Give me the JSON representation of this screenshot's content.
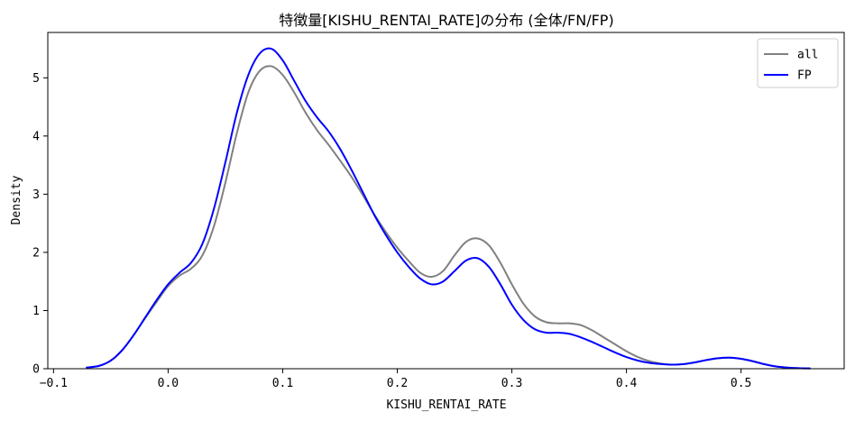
{
  "chart_data": {
    "type": "line",
    "title": "特徴量[KISHU_RENTAI_RATE]の分布 (全体/FN/FP)",
    "xlabel": "KISHU_RENTAI_RATE",
    "ylabel": "Density",
    "xlim": [
      -0.105,
      0.59
    ],
    "ylim": [
      0,
      5.78
    ],
    "x_ticks": [
      -0.1,
      0.0,
      0.1,
      0.2,
      0.3,
      0.4,
      0.5
    ],
    "x_tick_labels": [
      "−0.1",
      "0.0",
      "0.1",
      "0.2",
      "0.3",
      "0.4",
      "0.5"
    ],
    "y_ticks": [
      0,
      1,
      2,
      3,
      4,
      5
    ],
    "y_tick_labels": [
      "0",
      "1",
      "2",
      "3",
      "4",
      "5"
    ],
    "grid": false,
    "legend": "top-right",
    "series": [
      {
        "name": "all",
        "color": "#808080",
        "x": [
          -0.071,
          -0.06,
          -0.05,
          -0.04,
          -0.03,
          -0.02,
          -0.01,
          0.0,
          0.01,
          0.02,
          0.03,
          0.04,
          0.05,
          0.06,
          0.07,
          0.08,
          0.09,
          0.1,
          0.11,
          0.12,
          0.13,
          0.14,
          0.15,
          0.16,
          0.17,
          0.18,
          0.19,
          0.2,
          0.21,
          0.22,
          0.23,
          0.24,
          0.25,
          0.26,
          0.27,
          0.28,
          0.29,
          0.3,
          0.31,
          0.32,
          0.33,
          0.34,
          0.35,
          0.36,
          0.37,
          0.38,
          0.39,
          0.4,
          0.41,
          0.42,
          0.43,
          0.44,
          0.45,
          0.46,
          0.47,
          0.48,
          0.49,
          0.5,
          0.51,
          0.52,
          0.53,
          0.54,
          0.55,
          0.56
        ],
        "y": [
          0.02,
          0.05,
          0.14,
          0.32,
          0.58,
          0.87,
          1.15,
          1.42,
          1.6,
          1.72,
          1.95,
          2.45,
          3.2,
          4.05,
          4.75,
          5.12,
          5.2,
          5.05,
          4.75,
          4.4,
          4.1,
          3.85,
          3.58,
          3.3,
          2.98,
          2.65,
          2.35,
          2.08,
          1.85,
          1.65,
          1.58,
          1.68,
          1.95,
          2.18,
          2.24,
          2.12,
          1.82,
          1.45,
          1.12,
          0.9,
          0.8,
          0.78,
          0.78,
          0.75,
          0.66,
          0.54,
          0.42,
          0.3,
          0.2,
          0.13,
          0.09,
          0.07,
          0.08,
          0.11,
          0.15,
          0.18,
          0.19,
          0.17,
          0.13,
          0.08,
          0.04,
          0.02,
          0.01,
          0.005
        ]
      },
      {
        "name": "FP",
        "color": "#0000ff",
        "x": [
          -0.071,
          -0.06,
          -0.05,
          -0.04,
          -0.03,
          -0.02,
          -0.01,
          0.0,
          0.01,
          0.02,
          0.03,
          0.04,
          0.05,
          0.06,
          0.07,
          0.08,
          0.09,
          0.1,
          0.11,
          0.12,
          0.13,
          0.14,
          0.15,
          0.16,
          0.17,
          0.18,
          0.19,
          0.2,
          0.21,
          0.22,
          0.23,
          0.24,
          0.25,
          0.26,
          0.27,
          0.28,
          0.29,
          0.3,
          0.31,
          0.32,
          0.33,
          0.34,
          0.35,
          0.36,
          0.37,
          0.38,
          0.39,
          0.4,
          0.41,
          0.42,
          0.43,
          0.44,
          0.45,
          0.46,
          0.47,
          0.48,
          0.49,
          0.5,
          0.51,
          0.52,
          0.53,
          0.54,
          0.55,
          0.56
        ],
        "y": [
          0.02,
          0.05,
          0.14,
          0.32,
          0.58,
          0.88,
          1.18,
          1.45,
          1.65,
          1.82,
          2.15,
          2.75,
          3.55,
          4.4,
          5.05,
          5.42,
          5.5,
          5.3,
          4.95,
          4.6,
          4.32,
          4.08,
          3.78,
          3.42,
          3.03,
          2.64,
          2.3,
          2.0,
          1.75,
          1.55,
          1.45,
          1.5,
          1.68,
          1.86,
          1.9,
          1.75,
          1.45,
          1.1,
          0.84,
          0.68,
          0.62,
          0.62,
          0.6,
          0.54,
          0.46,
          0.37,
          0.28,
          0.2,
          0.14,
          0.1,
          0.08,
          0.07,
          0.08,
          0.11,
          0.15,
          0.18,
          0.19,
          0.17,
          0.13,
          0.08,
          0.04,
          0.02,
          0.01,
          0.005
        ]
      }
    ]
  }
}
